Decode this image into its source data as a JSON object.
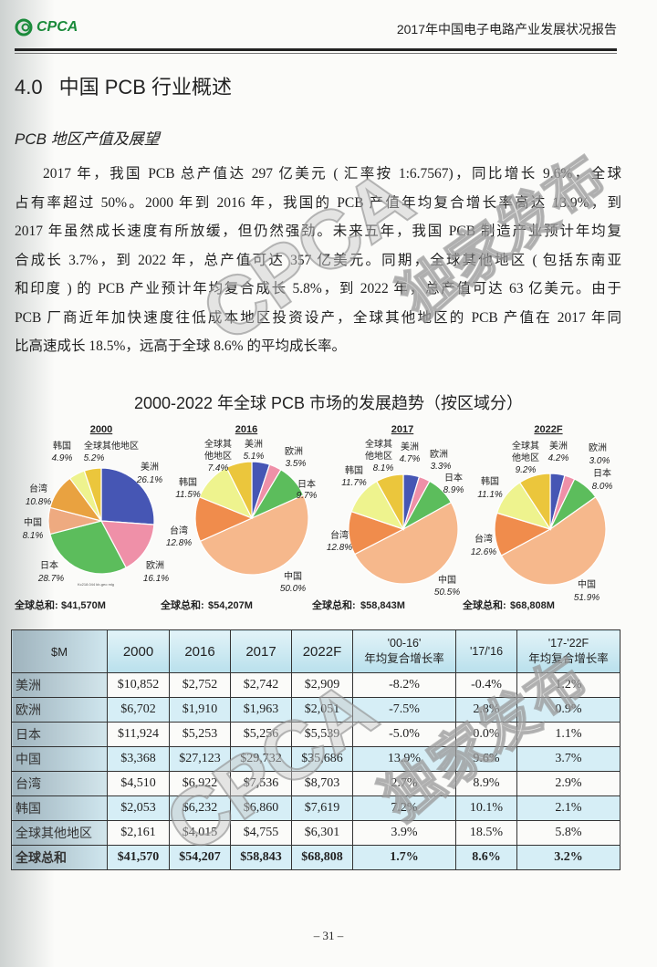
{
  "header": {
    "logo_text": "CPCA",
    "report_title": "2017年中国电子电路产业发展状况报告"
  },
  "section": {
    "number": "4.0",
    "title": "中国 PCB 行业概述"
  },
  "subsection": {
    "title": "PCB 地区产值及展望"
  },
  "body_lines": [
    "2017 年，我国 PCB 总产值达 297 亿美元 ( 汇率按 1:6.7567)，同比增长 9.6%，全球",
    "占有率超过 50%。2000 年到 2016 年，我国的 PCB 产值年均复合增长率高达 13.9%，到",
    "2017 年虽然成长速度有所放缓，但仍然强劲。未来五年，我国 PCB 制造产业预计年均复",
    "合成长 3.7%，到 2022 年，总产值可达 357 亿美元。同期，全球其他地区 ( 包括东南亚",
    "和印度 ) 的 PCB 产业预计年均复合成长 5.8%，到 2022 年，总产值可达 63 亿美元。由于",
    "PCB 厂商近年加快速度往低成本地区投资设产，全球其他地区的 PCB 产值在 2017 年同",
    "比高速成长 18.5%，远高于全球 8.6% 的平均成长率。"
  ],
  "watermark": {
    "text1": "CPCA",
    "text2": "独家发布"
  },
  "chart_data": {
    "type": "pie",
    "title": "2000-2022 年全球 PCB 市场的发展趋势（按区域分）",
    "total_label": "全球总和:",
    "source_note": "Kc218.044 kb-geo mlg",
    "categories": [
      "美洲",
      "欧洲",
      "日本",
      "中国",
      "台湾",
      "韩国",
      "全球其他地区"
    ],
    "colors": {
      "美洲": "#4656b4",
      "欧洲": "#ef90a8",
      "日本": "#5cbd5c",
      "中国": "#f6b88c",
      "台湾": "#f08c4c",
      "韩国": "#eef38e",
      "全球其他地区": "#ebc63c",
      "中国_2000": "#eeaa80",
      "台湾_2000": "#e9a240"
    },
    "pies": [
      {
        "year": "2000",
        "total": "$41,570M",
        "values": [
          26.1,
          16.1,
          28.7,
          8.1,
          10.8,
          4.9,
          5.2
        ],
        "labels": [
          "26.1%",
          "16.1%",
          "28.7%",
          "8.1%",
          "10.8%",
          "4.9%",
          "5.2%"
        ]
      },
      {
        "year": "2016",
        "total": "$54,207M",
        "values": [
          5.1,
          3.5,
          9.7,
          50.0,
          12.8,
          11.5,
          7.4
        ],
        "labels": [
          "5.1%",
          "3.5%",
          "9.7%",
          "50.0%",
          "12.8%",
          "11.5%",
          "7.4%"
        ]
      },
      {
        "year": "2017",
        "total": "$58,843M",
        "values": [
          4.7,
          3.3,
          8.9,
          50.5,
          12.8,
          11.7,
          8.1
        ],
        "labels": [
          "4.7%",
          "3.3%",
          "8.9%",
          "50.5%",
          "12.8%",
          "11.7%",
          "8.1%"
        ]
      },
      {
        "year": "2022F",
        "total": "$68,808M",
        "values": [
          4.2,
          3.0,
          8.0,
          51.9,
          12.6,
          11.1,
          9.2
        ],
        "labels": [
          "4.2%",
          "3.0%",
          "8.0%",
          "51.9%",
          "12.6%",
          "11.1%",
          "9.2%"
        ]
      }
    ],
    "split_labels": {
      "other_a": "全球其",
      "other_b": "他地区"
    }
  },
  "table": {
    "headers": [
      "$M",
      "2000",
      "2016",
      "2017",
      "2022F",
      "'00-16'",
      "'17/'16",
      "'17-'22F"
    ],
    "header_sub": "年均复合增长率",
    "rows": [
      [
        "美洲",
        "$10,852",
        "$2,752",
        "$2,742",
        "$2,909",
        "-8.2%",
        "-0.4%",
        "1.2%"
      ],
      [
        "欧洲",
        "$6,702",
        "$1,910",
        "$1,963",
        "$2,051",
        "-7.5%",
        "2.8%",
        "0.9%"
      ],
      [
        "日本",
        "$11,924",
        "$5,253",
        "$5,256",
        "$5,539",
        "-5.0%",
        "0.0%",
        "1.1%"
      ],
      [
        "中国",
        "$3,368",
        "$27,123",
        "$29,732",
        "$35,686",
        "13.9%",
        "9.6%",
        "3.7%"
      ],
      [
        "台湾",
        "$4,510",
        "$6,922",
        "$7,536",
        "$8,703",
        "2.7%",
        "8.9%",
        "2.9%"
      ],
      [
        "韩国",
        "$2,053",
        "$6,232",
        "$6,860",
        "$7,619",
        "7.2%",
        "10.1%",
        "2.1%"
      ],
      [
        "全球其他地区",
        "$2,161",
        "$4,015",
        "$4,755",
        "$6,301",
        "3.9%",
        "18.5%",
        "5.8%"
      ],
      [
        "全球总和",
        "$41,570",
        "$54,207",
        "$58,843",
        "$68,808",
        "1.7%",
        "8.6%",
        "3.2%"
      ]
    ]
  },
  "footer": {
    "page_number": "– 31 –"
  }
}
